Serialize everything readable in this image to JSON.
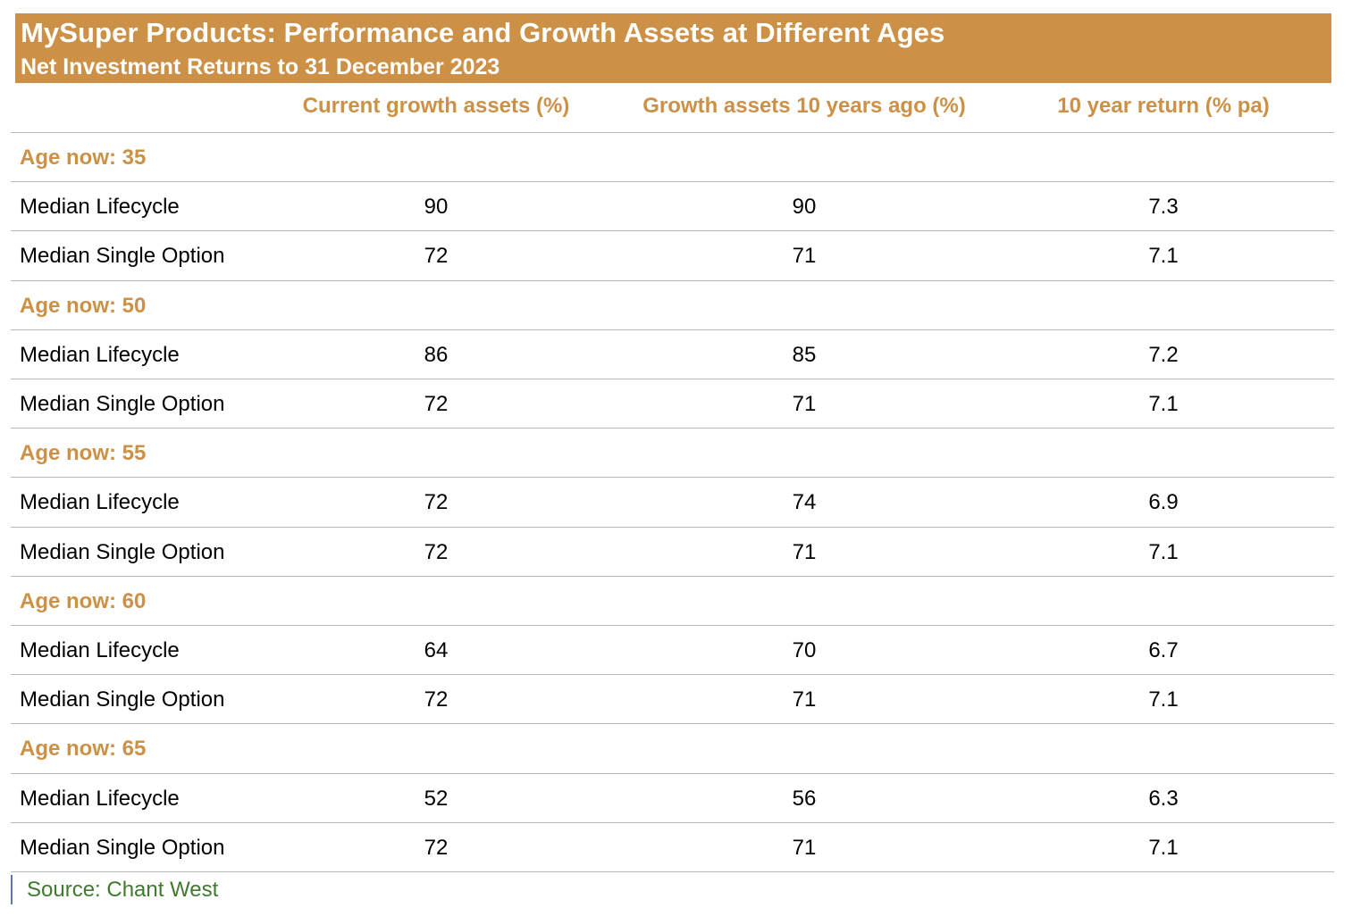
{
  "chart_data": {
    "type": "table",
    "title": "MySuper Products: Performance and Growth Assets at Different Ages",
    "subtitle": "Net Investment Returns to 31 December 2023",
    "columns": [
      "Current growth assets (%)",
      "Growth assets 10 years ago (%)",
      "10 year return (% pa)"
    ],
    "groups": [
      {
        "label": "Age now: 35",
        "rows": [
          {
            "label": "Median Lifecycle",
            "values": [
              "90",
              "90",
              "7.3"
            ]
          },
          {
            "label": "Median Single Option",
            "values": [
              "72",
              "71",
              "7.1"
            ]
          }
        ]
      },
      {
        "label": "Age now: 50",
        "rows": [
          {
            "label": "Median Lifecycle",
            "values": [
              "86",
              "85",
              "7.2"
            ]
          },
          {
            "label": "Median Single Option",
            "values": [
              "72",
              "71",
              "7.1"
            ]
          }
        ]
      },
      {
        "label": "Age now: 55",
        "rows": [
          {
            "label": "Median Lifecycle",
            "values": [
              "72",
              "74",
              "6.9"
            ]
          },
          {
            "label": "Median Single Option",
            "values": [
              "72",
              "71",
              "7.1"
            ]
          }
        ]
      },
      {
        "label": "Age now: 60",
        "rows": [
          {
            "label": "Median Lifecycle",
            "values": [
              "64",
              "70",
              "6.7"
            ]
          },
          {
            "label": "Median Single Option",
            "values": [
              "72",
              "71",
              "7.1"
            ]
          }
        ]
      },
      {
        "label": "Age now: 65",
        "rows": [
          {
            "label": "Median Lifecycle",
            "values": [
              "52",
              "56",
              "6.3"
            ]
          },
          {
            "label": "Median Single Option",
            "values": [
              "72",
              "71",
              "7.1"
            ]
          }
        ]
      }
    ],
    "source": "Source: Chant West",
    "colors": {
      "accent": "#cc9147",
      "banner_text": "#ffffff",
      "body_text": "#000000",
      "source_text": "#3f7a2f",
      "rule": "#b9b9b9"
    }
  }
}
